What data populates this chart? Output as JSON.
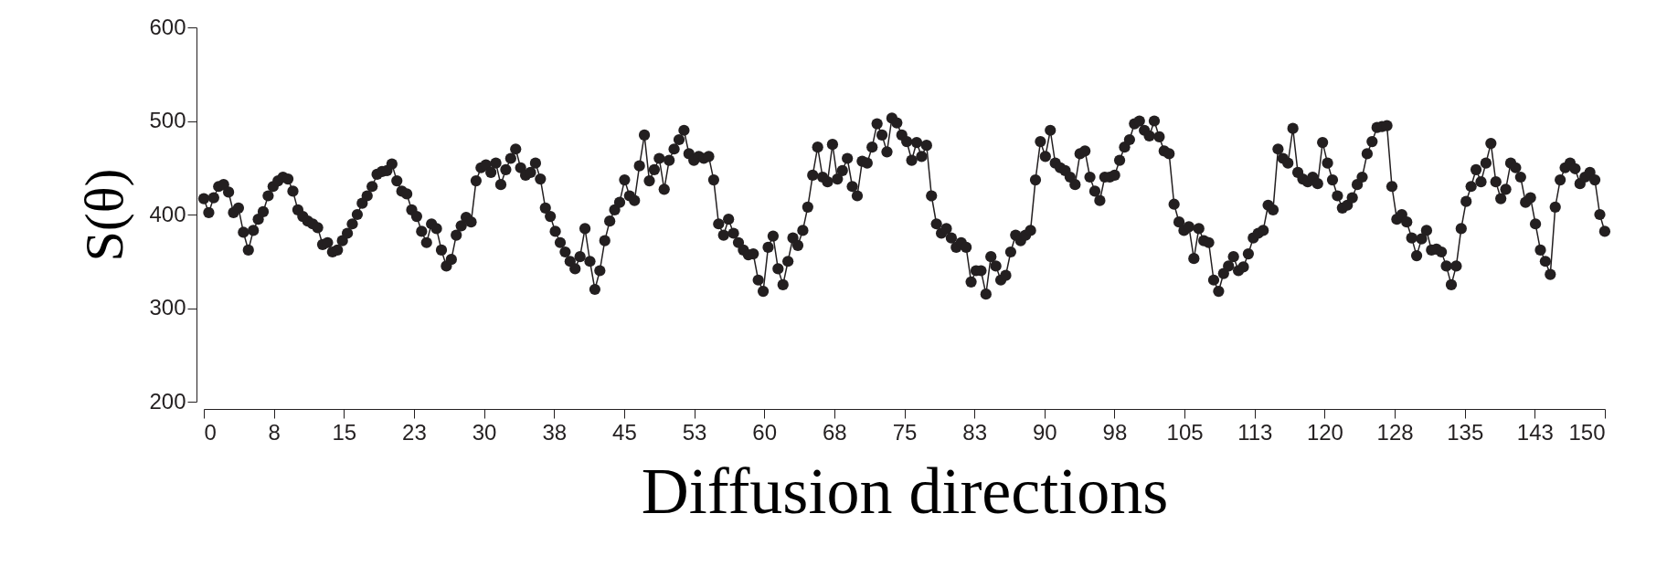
{
  "chart_data": {
    "type": "line",
    "xlabel": "Diffusion directions",
    "ylabel": "S(θ)",
    "xlim": [
      0,
      150
    ],
    "ylim": [
      200,
      600
    ],
    "xticks": [
      0,
      {
        "value": 7.5,
        "label": "8"
      },
      15,
      {
        "value": 22.5,
        "label": "23"
      },
      30,
      {
        "value": 37.5,
        "label": "38"
      },
      45,
      {
        "value": 52.5,
        "label": "53"
      },
      60,
      {
        "value": 67.5,
        "label": "68"
      },
      75,
      {
        "value": 82.5,
        "label": "83"
      },
      90,
      {
        "value": 97.5,
        "label": "98"
      },
      105,
      {
        "value": 112.5,
        "label": "113"
      },
      120,
      {
        "value": 127.5,
        "label": "128"
      },
      135,
      {
        "value": 142.5,
        "label": "143"
      },
      150
    ],
    "yticks": [
      200,
      300,
      400,
      500,
      600
    ],
    "grid": false,
    "marker": "circle",
    "line_style": "solid",
    "x": [
      0,
      0.53,
      1.06,
      1.59,
      2.12,
      2.65,
      3.18,
      3.71,
      4.24,
      4.77,
      5.3,
      5.83,
      6.36,
      6.89,
      7.42,
      7.95,
      8.48,
      9.01,
      9.54,
      10.07,
      10.6,
      11.13,
      11.66,
      12.19,
      12.72,
      13.25,
      13.78,
      14.31,
      14.84,
      15.37,
      15.9,
      16.43,
      16.96,
      17.49,
      18.02,
      18.55,
      19.08,
      19.61,
      20.14,
      20.67,
      21.2,
      21.73,
      22.26,
      22.79,
      23.32,
      23.85,
      24.38,
      24.91,
      25.44,
      25.97,
      26.5,
      27.03,
      27.56,
      28.09,
      28.62,
      29.15,
      29.68,
      30.21,
      30.74,
      31.27,
      31.8,
      32.33,
      32.86,
      33.39,
      33.92,
      34.45,
      34.98,
      35.51,
      36.04,
      36.57,
      37.1,
      37.63,
      38.16,
      38.69,
      39.22,
      39.75,
      40.28,
      40.81,
      41.34,
      41.87,
      42.4,
      42.93,
      43.46,
      43.99,
      44.52,
      45.05,
      45.58,
      46.11,
      46.64,
      47.17,
      47.7,
      48.23,
      48.76,
      49.29,
      49.82,
      50.35,
      50.88,
      51.41,
      51.94,
      52.47,
      53,
      53.53,
      54.06,
      54.59,
      55.12,
      55.65,
      56.18,
      56.71,
      57.24,
      57.77,
      58.3,
      58.83,
      59.36,
      59.89,
      60.42,
      60.95,
      61.48,
      62.01,
      62.54,
      63.07,
      63.6,
      64.13,
      64.66,
      65.19,
      65.72,
      66.25,
      66.78,
      67.31,
      67.84,
      68.37,
      68.9,
      69.43,
      69.96,
      70.49,
      71.02,
      71.55,
      72.08,
      72.61,
      73.14,
      73.67,
      74.2,
      74.73,
      75.26,
      75.79,
      76.32,
      76.85,
      77.38,
      77.91,
      78.44,
      78.97,
      79.5,
      80.03,
      80.56,
      81.09,
      81.62,
      82.15,
      82.68,
      83.21,
      83.74,
      84.27,
      84.8,
      85.33,
      85.86,
      86.39,
      86.92,
      87.45,
      87.98,
      88.51,
      89.04,
      89.57,
      90.1,
      90.63,
      91.16,
      91.69,
      92.22,
      92.75,
      93.28,
      93.81,
      94.34,
      94.87,
      95.4,
      95.93,
      96.46,
      96.99,
      97.52,
      98.05,
      98.58,
      99.11,
      99.64,
      100.17,
      100.7,
      101.23,
      101.76,
      102.29,
      102.82,
      103.35,
      103.88,
      104.41,
      104.94,
      105.47,
      106,
      106.53,
      107.06,
      107.59,
      108.12,
      108.65,
      109.18,
      109.71,
      110.24,
      110.77,
      111.3,
      111.83,
      112.36,
      112.89,
      113.42,
      113.95,
      114.48,
      115.01,
      115.54,
      116.07,
      116.6,
      117.13,
      117.66,
      118.19,
      118.72,
      119.25,
      119.78,
      120.31,
      120.84,
      121.37,
      121.9,
      122.43,
      122.96,
      123.49,
      124.02,
      124.55,
      125.08,
      125.61,
      126.14,
      126.67,
      127.2,
      127.73,
      128.26,
      128.79,
      129.32,
      129.85,
      130.38,
      130.91,
      131.44,
      131.97,
      132.5,
      133.03,
      133.56,
      134.09,
      134.62,
      135.15,
      135.68,
      136.21,
      136.74,
      137.27,
      137.8,
      138.33,
      138.86,
      139.39,
      139.92,
      140.45,
      140.98,
      141.51,
      142.04,
      142.57,
      143.1,
      143.63,
      144.16,
      144.69,
      145.22,
      145.75,
      146.28,
      146.81,
      147.34,
      147.87,
      148.4,
      148.93,
      149.46,
      149.99
    ],
    "series": [
      {
        "color": "#231f20",
        "values": [
          417,
          402,
          418,
          430,
          432,
          424,
          402,
          407,
          381,
          362,
          383,
          395,
          403,
          420,
          430,
          436,
          440,
          438,
          425,
          405,
          398,
          393,
          390,
          386,
          368,
          370,
          360,
          362,
          372,
          380,
          390,
          400,
          412,
          420,
          430,
          443,
          446,
          447,
          454,
          436,
          425,
          422,
          405,
          398,
          382,
          370,
          390,
          385,
          362,
          345,
          352,
          378,
          388,
          397,
          392,
          436,
          450,
          453,
          445,
          455,
          432,
          448,
          460,
          470,
          450,
          442,
          445,
          455,
          438,
          407,
          398,
          382,
          370,
          360,
          350,
          342,
          355,
          385,
          350,
          320,
          340,
          372,
          393,
          405,
          413,
          437,
          420,
          415,
          452,
          485,
          436,
          448,
          460,
          427,
          458,
          470,
          480,
          490,
          465,
          458,
          462,
          460,
          462,
          437,
          390,
          378,
          395,
          380,
          370,
          362,
          357,
          358,
          330,
          318,
          365,
          377,
          342,
          325,
          350,
          375,
          367,
          383,
          408,
          442,
          472,
          440,
          435,
          475,
          438,
          447,
          460,
          430,
          420,
          457,
          455,
          472,
          497,
          485,
          467,
          503,
          498,
          485,
          478,
          458,
          477,
          462,
          474,
          420,
          390,
          380,
          385,
          375,
          365,
          370,
          365,
          328,
          340,
          340,
          315,
          355,
          345,
          330,
          335,
          360,
          378,
          372,
          378,
          383,
          437,
          478,
          462,
          490,
          455,
          450,
          447,
          440,
          432,
          465,
          468,
          440,
          425,
          415,
          440,
          440,
          442,
          458,
          472,
          480,
          497,
          500,
          490,
          484,
          500,
          483,
          468,
          465,
          411,
          392,
          383,
          387,
          353,
          385,
          372,
          370,
          330,
          318,
          337,
          345,
          355,
          340,
          344,
          358,
          375,
          380,
          383,
          410,
          405,
          470,
          460,
          455,
          492,
          445,
          438,
          435,
          440,
          433,
          477,
          455,
          437,
          420,
          407,
          410,
          418,
          432,
          440,
          465,
          478,
          493,
          494,
          495,
          430,
          395,
          400,
          392,
          375,
          356,
          374,
          383,
          362,
          363,
          360,
          345,
          325,
          345,
          385,
          414,
          430,
          448,
          435,
          455,
          476,
          435,
          417,
          427,
          455,
          450,
          440,
          413,
          418,
          390,
          362,
          350,
          336,
          408,
          437,
          450,
          455,
          449,
          433,
          440,
          445,
          437,
          400,
          382
        ]
      }
    ]
  }
}
